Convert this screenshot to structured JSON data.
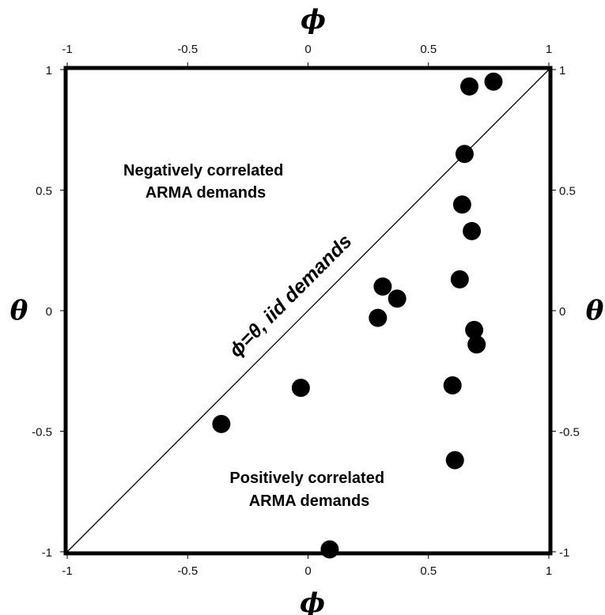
{
  "chart_data": {
    "type": "scatter",
    "title": "",
    "xlabel": "ϕ",
    "ylabel": "θ",
    "xlim": [
      -1,
      1
    ],
    "ylim": [
      -1,
      1
    ],
    "x_ticks": [
      -1,
      -0.5,
      0,
      0.5,
      1
    ],
    "y_ticks": [
      -1,
      -0.5,
      0,
      0.5,
      1
    ],
    "x_tick_labels": [
      "-1",
      "-0.5",
      "0",
      "0.5",
      "1"
    ],
    "y_tick_labels": [
      "-1",
      "-0.5",
      "0",
      "0.5",
      "1"
    ],
    "grid": false,
    "points": [
      {
        "x": 0.67,
        "y": 0.93
      },
      {
        "x": 0.77,
        "y": 0.95
      },
      {
        "x": 0.65,
        "y": 0.65
      },
      {
        "x": 0.64,
        "y": 0.44
      },
      {
        "x": 0.68,
        "y": 0.33
      },
      {
        "x": 0.63,
        "y": 0.13
      },
      {
        "x": 0.31,
        "y": 0.1
      },
      {
        "x": 0.37,
        "y": 0.05
      },
      {
        "x": 0.29,
        "y": -0.03
      },
      {
        "x": 0.69,
        "y": -0.08
      },
      {
        "x": 0.7,
        "y": -0.14
      },
      {
        "x": 0.6,
        "y": -0.31
      },
      {
        "x": -0.03,
        "y": -0.32
      },
      {
        "x": -0.36,
        "y": -0.47
      },
      {
        "x": 0.61,
        "y": -0.62
      },
      {
        "x": 0.09,
        "y": -0.99
      }
    ],
    "reference_line": {
      "from": [
        -1,
        -1
      ],
      "to": [
        1,
        1
      ],
      "label": "ϕ=θ, iid demands"
    },
    "annotations": [
      {
        "lines": [
          "Negatively correlated",
          "ARMA demands"
        ]
      },
      {
        "lines": [
          "Positively correlated",
          "ARMA demands"
        ]
      }
    ],
    "marker_color": "#000000"
  }
}
